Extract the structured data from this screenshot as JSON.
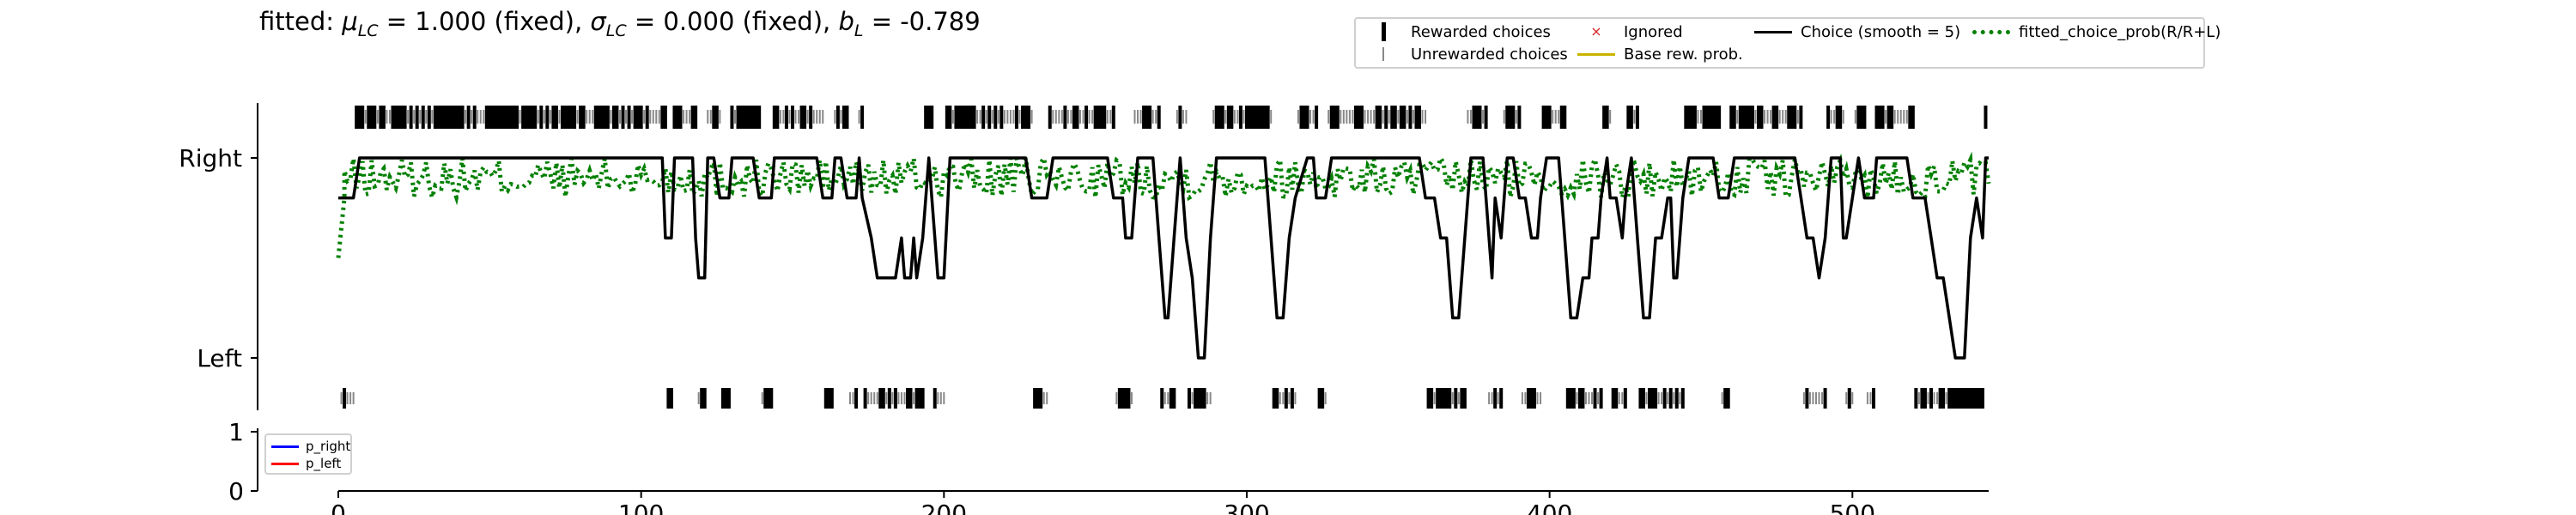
{
  "title": {
    "prefix": "fitted: ",
    "mu_sym": "μ",
    "mu_sub": "LC",
    "mu_val": " = 1.000 (fixed), ",
    "sigma_sym": "σ",
    "sigma_sub": "LC",
    "sigma_val": " = 0.000 (fixed), ",
    "b_sym": "b",
    "b_sub": "L",
    "b_val": " = -0.789"
  },
  "legend": {
    "rewarded": "Rewarded choices",
    "unrewarded": "Unrewarded choices",
    "ignored": "Ignored",
    "base_rew": "Base rew. prob.",
    "choice_smooth": "Choice (smooth = 5)",
    "fitted_prob": "fitted_choice_prob(R/R+L)"
  },
  "legend2": {
    "p_right": "p_right",
    "p_left": "p_left"
  },
  "colors": {
    "choice": "#000000",
    "fitted": "#008000",
    "unrewarded": "#888888",
    "ignored": "#d62728",
    "base": "#c8b400",
    "p_right": "#0000ff",
    "p_left": "#ff0000"
  },
  "chart_data": [
    {
      "type": "line",
      "title": "fitted: μLC = 1.000 (fixed), σLC = 0.000 (fixed), bL = -0.789",
      "yticks": [
        "Left",
        "Right"
      ],
      "xlim": [
        0,
        545
      ],
      "choice_smooth": [
        [
          0,
          0.8
        ],
        [
          3,
          0.8
        ],
        [
          5,
          0.8
        ],
        [
          7,
          1.0
        ],
        [
          107,
          1.0
        ],
        [
          108,
          0.6
        ],
        [
          110,
          0.6
        ],
        [
          111,
          1.0
        ],
        [
          117,
          1.0
        ],
        [
          118,
          0.6
        ],
        [
          119,
          0.4
        ],
        [
          121,
          0.4
        ],
        [
          122,
          1.0
        ],
        [
          124,
          1.0
        ],
        [
          126,
          0.8
        ],
        [
          129,
          0.8
        ],
        [
          130,
          1.0
        ],
        [
          137,
          1.0
        ],
        [
          139,
          0.8
        ],
        [
          143,
          0.8
        ],
        [
          144,
          1.0
        ],
        [
          158,
          1.0
        ],
        [
          160,
          0.8
        ],
        [
          163,
          0.8
        ],
        [
          164,
          1.0
        ],
        [
          166,
          1.0
        ],
        [
          168,
          0.8
        ],
        [
          171,
          0.8
        ],
        [
          172,
          1.0
        ],
        [
          173,
          0.8
        ],
        [
          176,
          0.6
        ],
        [
          178,
          0.4
        ],
        [
          184,
          0.4
        ],
        [
          186,
          0.6
        ],
        [
          187,
          0.4
        ],
        [
          189,
          0.4
        ],
        [
          190,
          0.6
        ],
        [
          191,
          0.4
        ],
        [
          193,
          0.6
        ],
        [
          195,
          1.0
        ],
        [
          196,
          0.8
        ],
        [
          198,
          0.4
        ],
        [
          200,
          0.4
        ],
        [
          202,
          1.0
        ],
        [
          227,
          1.0
        ],
        [
          229,
          0.8
        ],
        [
          234,
          0.8
        ],
        [
          236,
          1.0
        ],
        [
          254,
          1.0
        ],
        [
          256,
          0.8
        ],
        [
          259,
          0.8
        ],
        [
          260,
          0.6
        ],
        [
          262,
          0.6
        ],
        [
          264,
          1.0
        ],
        [
          269,
          1.0
        ],
        [
          271,
          0.6
        ],
        [
          273,
          0.2
        ],
        [
          274,
          0.2
        ],
        [
          276,
          0.6
        ],
        [
          278,
          1.0
        ],
        [
          280,
          0.6
        ],
        [
          282,
          0.4
        ],
        [
          284,
          0.0
        ],
        [
          286,
          0.0
        ],
        [
          288,
          0.6
        ],
        [
          290,
          1.0
        ],
        [
          306,
          1.0
        ],
        [
          308,
          0.6
        ],
        [
          310,
          0.2
        ],
        [
          312,
          0.2
        ],
        [
          314,
          0.6
        ],
        [
          316,
          0.8
        ],
        [
          320,
          1.0
        ],
        [
          322,
          1.0
        ],
        [
          323,
          0.8
        ],
        [
          326,
          0.8
        ],
        [
          328,
          1.0
        ],
        [
          357,
          1.0
        ],
        [
          359,
          0.8
        ],
        [
          362,
          0.8
        ],
        [
          364,
          0.6
        ],
        [
          366,
          0.6
        ],
        [
          368,
          0.2
        ],
        [
          370,
          0.2
        ],
        [
          372,
          0.6
        ],
        [
          374,
          1.0
        ],
        [
          378,
          1.0
        ],
        [
          379,
          0.8
        ],
        [
          380,
          0.6
        ],
        [
          381,
          0.4
        ],
        [
          382,
          0.8
        ],
        [
          384,
          0.6
        ],
        [
          386,
          1.0
        ],
        [
          388,
          1.0
        ],
        [
          390,
          0.8
        ],
        [
          392,
          0.8
        ],
        [
          394,
          0.6
        ],
        [
          396,
          0.6
        ],
        [
          397,
          0.8
        ],
        [
          399,
          1.0
        ],
        [
          403,
          1.0
        ],
        [
          405,
          0.6
        ],
        [
          407,
          0.2
        ],
        [
          409,
          0.2
        ],
        [
          411,
          0.4
        ],
        [
          413,
          0.4
        ],
        [
          414,
          0.6
        ],
        [
          416,
          0.6
        ],
        [
          417,
          0.8
        ],
        [
          419,
          1.0
        ],
        [
          420,
          0.8
        ],
        [
          422,
          0.8
        ],
        [
          424,
          0.6
        ],
        [
          425,
          0.8
        ],
        [
          427,
          1.0
        ],
        [
          429,
          0.6
        ],
        [
          431,
          0.2
        ],
        [
          433,
          0.2
        ],
        [
          435,
          0.6
        ],
        [
          437,
          0.6
        ],
        [
          439,
          0.8
        ],
        [
          440,
          0.8
        ],
        [
          441,
          0.4
        ],
        [
          442,
          0.4
        ],
        [
          444,
          0.8
        ],
        [
          446,
          1.0
        ],
        [
          454,
          1.0
        ],
        [
          456,
          0.8
        ],
        [
          459,
          0.8
        ],
        [
          461,
          1.0
        ],
        [
          481,
          1.0
        ],
        [
          483,
          0.8
        ],
        [
          485,
          0.6
        ],
        [
          487,
          0.6
        ],
        [
          489,
          0.4
        ],
        [
          491,
          0.6
        ],
        [
          493,
          1.0
        ],
        [
          496,
          1.0
        ],
        [
          497,
          0.6
        ],
        [
          498,
          0.6
        ],
        [
          500,
          0.8
        ],
        [
          502,
          1.0
        ],
        [
          504,
          0.8
        ],
        [
          507,
          0.8
        ],
        [
          508,
          1.0
        ],
        [
          518,
          1.0
        ],
        [
          520,
          0.8
        ],
        [
          524,
          0.8
        ],
        [
          526,
          0.6
        ],
        [
          528,
          0.4
        ],
        [
          530,
          0.4
        ],
        [
          532,
          0.2
        ],
        [
          534,
          0.0
        ],
        [
          537,
          0.0
        ],
        [
          539,
          0.6
        ],
        [
          541,
          0.8
        ],
        [
          543,
          0.6
        ],
        [
          544,
          1.0
        ],
        [
          545,
          1.0
        ]
      ],
      "fitted_choice_prob_band": [
        0.8,
        1.0
      ],
      "fitted_choice_prob_start": [
        [
          0,
          0.5
        ],
        [
          2,
          0.8
        ]
      ]
    },
    {
      "type": "line",
      "ylim": [
        0,
        1
      ],
      "yticks": [
        "0",
        "1"
      ],
      "xticks": [
        "0",
        "100",
        "200",
        "300",
        "400",
        "500"
      ],
      "xlim": [
        0,
        545
      ],
      "series": [
        {
          "name": "p_right",
          "values": []
        },
        {
          "name": "p_left",
          "values": []
        }
      ]
    }
  ]
}
